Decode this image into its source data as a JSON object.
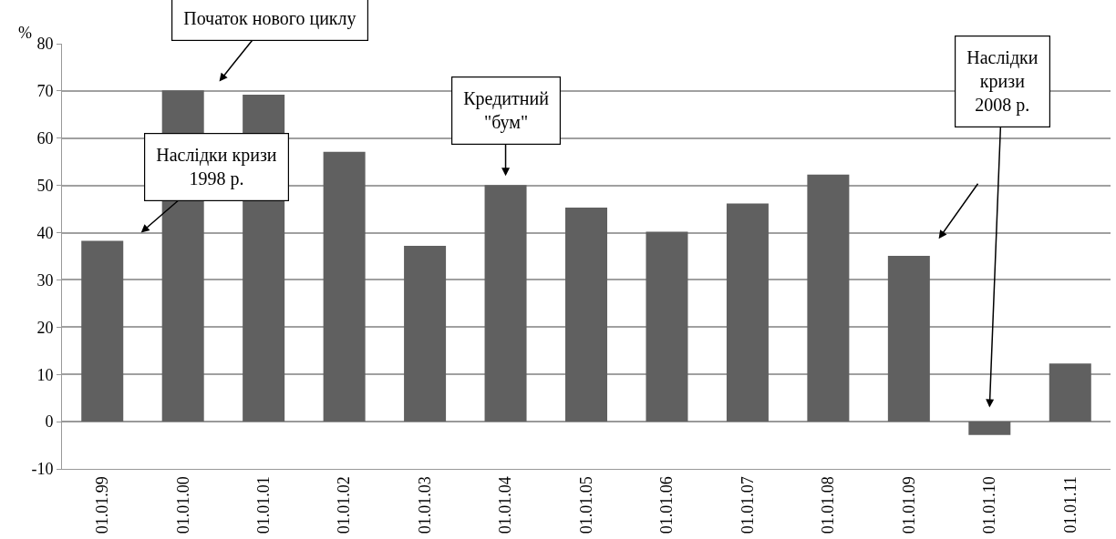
{
  "chart_data": {
    "type": "bar",
    "ylabel": "%",
    "categories": [
      "01.01.99",
      "01.01.00",
      "01.01.01",
      "01.01.02",
      "01.01.03",
      "01.01.04",
      "01.01.05",
      "01.01.06",
      "01.01.07",
      "01.01.08",
      "01.01.09",
      "01.01.10",
      "01.01.11"
    ],
    "values": [
      38.3,
      70.1,
      69.2,
      57.1,
      37.2,
      50.1,
      45.3,
      40.2,
      46.2,
      52.3,
      35.1,
      -2.8,
      12.3
    ],
    "color": "#606060",
    "ylim": [
      -10,
      80
    ],
    "yticks": [
      -10,
      0,
      10,
      20,
      30,
      40,
      50,
      60,
      70,
      80
    ],
    "grid": "y",
    "annotations": [
      "Наслідки кризи\n1998 р.",
      "Початок нового циклу",
      "Кредитний\n\"бум\"",
      "Наслідки\nкризи\n2008 р."
    ]
  }
}
